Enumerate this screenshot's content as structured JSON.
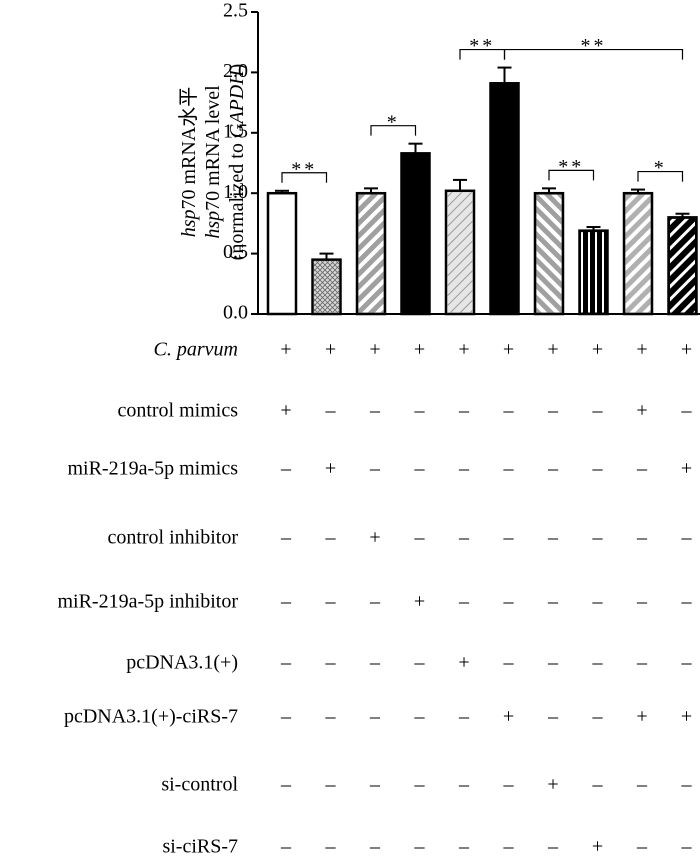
{
  "chart_data": {
    "type": "bar",
    "ylabel": [
      [
        {
          "text": "hsp",
          "italic": true
        },
        {
          "text": "70 mRNA水平",
          "italic": false
        }
      ],
      [
        {
          "text": "hsp",
          "italic": true
        },
        {
          "text": "70 mRNA level",
          "italic": false
        }
      ],
      [
        {
          "text": "(normalized to ",
          "italic": false
        },
        {
          "text": "GAPDH",
          "italic": true
        },
        {
          "text": ")",
          "italic": false
        }
      ]
    ],
    "values": [
      1.0,
      0.45,
      1.0,
      1.33,
      1.02,
      1.91,
      1.0,
      0.69,
      1.0,
      0.8
    ],
    "errors": [
      0.02,
      0.05,
      0.04,
      0.08,
      0.09,
      0.13,
      0.04,
      0.03,
      0.03,
      0.03
    ],
    "colors": [
      "#ffffff",
      "#d8d8d8",
      "#a0a0a0",
      "#000000",
      "#e6e6e6",
      "#000000",
      "#a0a0a0",
      "#000000",
      "#b0b0b0",
      "#000000"
    ],
    "ylim": [
      0,
      2.5
    ],
    "yticks": [
      {
        "value": 0,
        "label": "0.0"
      },
      0.5,
      {
        "value": 1,
        "label": "1.0"
      },
      1.5,
      {
        "value": 2,
        "label": "2.0"
      },
      2.5
    ],
    "annotations": [
      {
        "text": "**",
        "between": [
          0,
          1
        ]
      },
      {
        "text": "*",
        "between": [
          2,
          3
        ]
      },
      {
        "text": "**",
        "between": [
          4,
          5
        ]
      },
      {
        "text": "**",
        "between": [
          5,
          9
        ]
      },
      {
        "text": "**",
        "between": [
          6,
          7
        ]
      },
      {
        "text": "*",
        "between": [
          8,
          9
        ]
      }
    ],
    "conditions": [
      {
        "label": "C. parvum",
        "italic": true,
        "values": [
          "+",
          "+",
          "+",
          "+",
          "+",
          "+",
          "+",
          "+",
          "+",
          "+"
        ]
      },
      {
        "label": "control mimics",
        "values": [
          "+",
          "–",
          "–",
          "–",
          "–",
          "–",
          "–",
          "–",
          "+",
          "–"
        ]
      },
      {
        "label": "miR-219a-5p mimics",
        "values": [
          "–",
          "+",
          "–",
          "–",
          "–",
          "–",
          "–",
          "–",
          "–",
          "+"
        ]
      },
      {
        "label": "control inhibitor",
        "values": [
          "–",
          "–",
          "+",
          "–",
          "–",
          "–",
          "–",
          "–",
          "–",
          "–"
        ]
      },
      {
        "label": "miR-219a-5p inhibitor",
        "values": [
          "–",
          "–",
          "–",
          "+",
          "–",
          "–",
          "–",
          "–",
          "–",
          "–"
        ]
      },
      {
        "label": "pcDNA3.1(+)",
        "values": [
          "–",
          "–",
          "–",
          "–",
          "+",
          "–",
          "–",
          "–",
          "–",
          "–"
        ]
      },
      {
        "label": "pcDNA3.1(+)-ciRS-7",
        "values": [
          "–",
          "–",
          "–",
          "–",
          "–",
          "+",
          "–",
          "–",
          "+",
          "+"
        ]
      },
      {
        "label": "si-control",
        "values": [
          "–",
          "–",
          "–",
          "–",
          "–",
          "–",
          "+",
          "–",
          "–",
          "–"
        ]
      },
      {
        "label": "si-ciRS-7",
        "values": [
          "–",
          "–",
          "–",
          "–",
          "–",
          "–",
          "–",
          "+",
          "–",
          "–"
        ]
      }
    ]
  }
}
